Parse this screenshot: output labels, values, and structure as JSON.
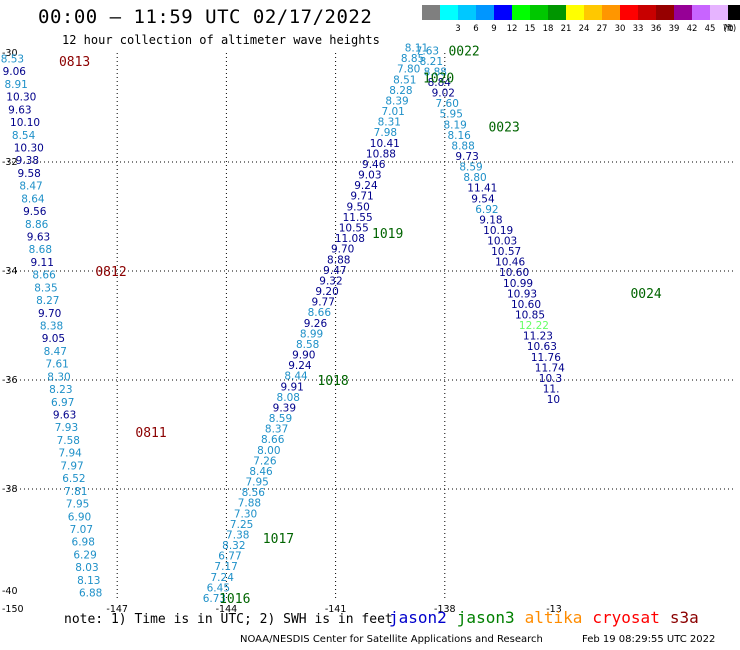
{
  "header": {
    "title": "00:00 — 11:59 UTC 02/17/2022",
    "subtitle": "12 hour collection of altimeter wave heights"
  },
  "colorbar": {
    "unit_label": "(ft)",
    "bins": [
      {
        "label": "",
        "color": "#7f7f7f"
      },
      {
        "label": "3",
        "color": "#00ffff"
      },
      {
        "label": "6",
        "color": "#00c8ff"
      },
      {
        "label": "9",
        "color": "#0096ff"
      },
      {
        "label": "12",
        "color": "#0000ff"
      },
      {
        "label": "15",
        "color": "#00ff00"
      },
      {
        "label": "18",
        "color": "#00c800"
      },
      {
        "label": "21",
        "color": "#009600"
      },
      {
        "label": "24",
        "color": "#ffff00"
      },
      {
        "label": "27",
        "color": "#ffc800"
      },
      {
        "label": "30",
        "color": "#ff9600"
      },
      {
        "label": "33",
        "color": "#ff0000"
      },
      {
        "label": "36",
        "color": "#c80000"
      },
      {
        "label": "39",
        "color": "#960000"
      },
      {
        "label": "42",
        "color": "#960096"
      },
      {
        "label": "45",
        "color": "#c864ff"
      },
      {
        "label": "70",
        "color": "#e6b4ff"
      },
      {
        "label": "",
        "color": "#000000"
      }
    ]
  },
  "map": {
    "lon_range": [
      -150,
      -130
    ],
    "lat_range": [
      -40,
      -30
    ],
    "lon_ticks": [
      {
        "value": -150,
        "label": "-150"
      },
      {
        "value": -147,
        "label": "-147"
      },
      {
        "value": -144,
        "label": "-144"
      },
      {
        "value": -141,
        "label": "-141"
      },
      {
        "value": -138,
        "label": "-138"
      },
      {
        "value": -135,
        "label": "-13"
      }
    ],
    "lat_ticks": [
      {
        "value": -30,
        "label": "-30"
      },
      {
        "value": -32,
        "label": "-32"
      },
      {
        "value": -34,
        "label": "-34"
      },
      {
        "value": -36,
        "label": "-36"
      },
      {
        "value": -38,
        "label": "-38"
      },
      {
        "value": -40,
        "label": "-40"
      }
    ],
    "light_color": "#1e90c8",
    "dark_color": "#00008b",
    "pale_color": "#66ff66",
    "pass_times": [
      {
        "label": "0813",
        "lon": -148.6,
        "lat": -30.15,
        "color": "#8b0000"
      },
      {
        "label": "0812",
        "lon": -147.6,
        "lat": -34.0,
        "color": "#8b0000"
      },
      {
        "label": "0811",
        "lon": -146.5,
        "lat": -36.95,
        "color": "#8b0000"
      },
      {
        "label": "1016",
        "lon": -144.2,
        "lat": -40.0,
        "color": "#006400"
      },
      {
        "label": "1017",
        "lon": -143.0,
        "lat": -38.9,
        "color": "#006400"
      },
      {
        "label": "1018",
        "lon": -141.5,
        "lat": -36.0,
        "color": "#006400"
      },
      {
        "label": "1019",
        "lon": -140.0,
        "lat": -33.3,
        "color": "#006400"
      },
      {
        "label": "1020",
        "lon": -138.6,
        "lat": -30.45,
        "color": "#006400"
      },
      {
        "label": "0022",
        "lon": -137.9,
        "lat": -29.95,
        "color": "#006400"
      },
      {
        "label": "0023",
        "lon": -136.8,
        "lat": -31.35,
        "color": "#006400"
      },
      {
        "label": "0024",
        "lon": -132.9,
        "lat": -34.4,
        "color": "#006400"
      }
    ],
    "tracks": [
      {
        "name": "track-0813-0811",
        "start": {
          "lon": -150.2,
          "lat": -30.1
        },
        "end": {
          "lon": -148.05,
          "lat": -39.9
        },
        "values": [
          {
            "v": "8.53",
            "s": "l"
          },
          {
            "v": "9.06",
            "s": "d"
          },
          {
            "v": "8.91",
            "s": "l"
          },
          {
            "v": "10.30",
            "s": "d"
          },
          {
            "v": "9.63",
            "s": "d"
          },
          {
            "v": "10.10",
            "s": "d"
          },
          {
            "v": "8.54",
            "s": "l"
          },
          {
            "v": "10.30",
            "s": "d"
          },
          {
            "v": "9.38",
            "s": "d"
          },
          {
            "v": "9.58",
            "s": "d"
          },
          {
            "v": "8.47",
            "s": "l"
          },
          {
            "v": "8.64",
            "s": "l"
          },
          {
            "v": "9.56",
            "s": "d"
          },
          {
            "v": "8.86",
            "s": "l"
          },
          {
            "v": "9.63",
            "s": "d"
          },
          {
            "v": "8.68",
            "s": "l"
          },
          {
            "v": "9.11",
            "s": "d"
          },
          {
            "v": "8.66",
            "s": "l"
          },
          {
            "v": "8.35",
            "s": "l"
          },
          {
            "v": "8.27",
            "s": "l"
          },
          {
            "v": "9.70",
            "s": "d"
          },
          {
            "v": "8.38",
            "s": "l"
          },
          {
            "v": "9.05",
            "s": "d"
          },
          {
            "v": "8.47",
            "s": "l"
          },
          {
            "v": "7.61",
            "s": "l"
          },
          {
            "v": "8.30",
            "s": "l"
          },
          {
            "v": "8.23",
            "s": "l"
          },
          {
            "v": "6.97",
            "s": "l"
          },
          {
            "v": "9.63",
            "s": "d"
          },
          {
            "v": "7.93",
            "s": "l"
          },
          {
            "v": "7.58",
            "s": "l"
          },
          {
            "v": "7.94",
            "s": "l"
          },
          {
            "v": "7.97",
            "s": "l"
          },
          {
            "v": "6.52",
            "s": "l"
          },
          {
            "v": "7.81",
            "s": "l"
          },
          {
            "v": "7.95",
            "s": "l"
          },
          {
            "v": "6.90",
            "s": "l"
          },
          {
            "v": "7.07",
            "s": "l"
          },
          {
            "v": "6.98",
            "s": "l"
          },
          {
            "v": "6.29",
            "s": "l"
          },
          {
            "v": "8.03",
            "s": "l"
          },
          {
            "v": "8.13",
            "s": "l"
          },
          {
            "v": "6.88",
            "s": "l"
          }
        ]
      },
      {
        "name": "track-1016-1020",
        "start": {
          "lon": -144.65,
          "lat": -40.0
        },
        "end": {
          "lon": -139.1,
          "lat": -29.9
        },
        "values": [
          {
            "v": "6.73",
            "s": "l"
          },
          {
            "v": "6.45",
            "s": "l"
          },
          {
            "v": "7.24",
            "s": "l"
          },
          {
            "v": "7.17",
            "s": "l"
          },
          {
            "v": "6.77",
            "s": "l"
          },
          {
            "v": "8.32",
            "s": "l"
          },
          {
            "v": "7.38",
            "s": "l"
          },
          {
            "v": "7.25",
            "s": "l"
          },
          {
            "v": "7.30",
            "s": "l"
          },
          {
            "v": "7.88",
            "s": "l"
          },
          {
            "v": "8.56",
            "s": "l"
          },
          {
            "v": "7.95",
            "s": "l"
          },
          {
            "v": "8.46",
            "s": "l"
          },
          {
            "v": "7.26",
            "s": "l"
          },
          {
            "v": "8.00",
            "s": "l"
          },
          {
            "v": "8.66",
            "s": "l"
          },
          {
            "v": "8.37",
            "s": "l"
          },
          {
            "v": "8.59",
            "s": "l"
          },
          {
            "v": "9.39",
            "s": "d"
          },
          {
            "v": "8.08",
            "s": "l"
          },
          {
            "v": "9.91",
            "s": "d"
          },
          {
            "v": "8.44",
            "s": "l"
          },
          {
            "v": "9.24",
            "s": "d"
          },
          {
            "v": "9.90",
            "s": "d"
          },
          {
            "v": "8.58",
            "s": "l"
          },
          {
            "v": "8.99",
            "s": "l"
          },
          {
            "v": "9.26",
            "s": "d"
          },
          {
            "v": "8.66",
            "s": "l"
          },
          {
            "v": "9.77",
            "s": "d"
          },
          {
            "v": "9.20",
            "s": "d"
          },
          {
            "v": "9.32",
            "s": "d"
          },
          {
            "v": "9.47",
            "s": "d"
          },
          {
            "v": "8.88",
            "s": "d"
          },
          {
            "v": "9.70",
            "s": "d"
          },
          {
            "v": "11.08",
            "s": "d"
          },
          {
            "v": "10.55",
            "s": "d"
          },
          {
            "v": "11.55",
            "s": "d"
          },
          {
            "v": "9.50",
            "s": "d"
          },
          {
            "v": "9.71",
            "s": "d"
          },
          {
            "v": "9.24",
            "s": "d"
          },
          {
            "v": "9.03",
            "s": "d"
          },
          {
            "v": "9.46",
            "s": "d"
          },
          {
            "v": "10.88",
            "s": "d"
          },
          {
            "v": "10.41",
            "s": "d"
          },
          {
            "v": "7.98",
            "s": "l"
          },
          {
            "v": "8.31",
            "s": "l"
          },
          {
            "v": "7.01",
            "s": "l"
          },
          {
            "v": "8.39",
            "s": "l"
          },
          {
            "v": "8.28",
            "s": "l"
          },
          {
            "v": "8.51",
            "s": "l"
          },
          {
            "v": "7.80",
            "s": "l"
          },
          {
            "v": "8.85",
            "s": "l"
          },
          {
            "v": "8.11",
            "s": "l"
          }
        ]
      },
      {
        "name": "track-0022-0024",
        "start": {
          "lon": -138.8,
          "lat": -29.95
        },
        "end": {
          "lon": -135.2,
          "lat": -36.35
        },
        "values": [
          {
            "v": "7.63",
            "s": "l"
          },
          {
            "v": "8.21",
            "s": "l"
          },
          {
            "v": "8.88",
            "s": "l"
          },
          {
            "v": "8.84",
            "s": "d"
          },
          {
            "v": "9.02",
            "s": "d"
          },
          {
            "v": "7.60",
            "s": "l"
          },
          {
            "v": "5.95",
            "s": "l"
          },
          {
            "v": "8.19",
            "s": "l"
          },
          {
            "v": "8.16",
            "s": "l"
          },
          {
            "v": "8.88",
            "s": "l"
          },
          {
            "v": "9.73",
            "s": "d"
          },
          {
            "v": "8.59",
            "s": "l"
          },
          {
            "v": "8.80",
            "s": "l"
          },
          {
            "v": "11.41",
            "s": "d"
          },
          {
            "v": "9.54",
            "s": "d"
          },
          {
            "v": "6.92",
            "s": "l"
          },
          {
            "v": "9.18",
            "s": "d"
          },
          {
            "v": "10.19",
            "s": "d"
          },
          {
            "v": "10.03",
            "s": "d"
          },
          {
            "v": "10.57",
            "s": "d"
          },
          {
            "v": "10.46",
            "s": "d"
          },
          {
            "v": "10.60",
            "s": "d"
          },
          {
            "v": "10.99",
            "s": "d"
          },
          {
            "v": "10.93",
            "s": "d"
          },
          {
            "v": "10.60",
            "s": "d"
          },
          {
            "v": "10.85",
            "s": "d"
          },
          {
            "v": "12.22",
            "s": "p"
          },
          {
            "v": "11.23",
            "s": "d"
          },
          {
            "v": "10.63",
            "s": "d"
          },
          {
            "v": "11.76",
            "s": "d"
          },
          {
            "v": "11.74",
            "s": "d"
          },
          {
            "v": "10.3",
            "s": "d"
          },
          {
            "v": "11.",
            "s": "d"
          },
          {
            "v": "10",
            "s": "d"
          }
        ]
      }
    ]
  },
  "footer": {
    "note": "note: 1) Time is in UTC; 2) SWH is in feet",
    "satellites": [
      {
        "label": "jason2",
        "color": "#0000cc"
      },
      {
        "label": "jason3",
        "color": "#008000"
      },
      {
        "label": "altika",
        "color": "#ff8c00"
      },
      {
        "label": "cryosat",
        "color": "#ff0000"
      },
      {
        "label": "s3a",
        "color": "#8b0000"
      }
    ],
    "credit": "NOAA/NESDIS Center for Satellite Applications and Research",
    "timestamp": "Feb 19 08:29:55 UTC 2022"
  }
}
